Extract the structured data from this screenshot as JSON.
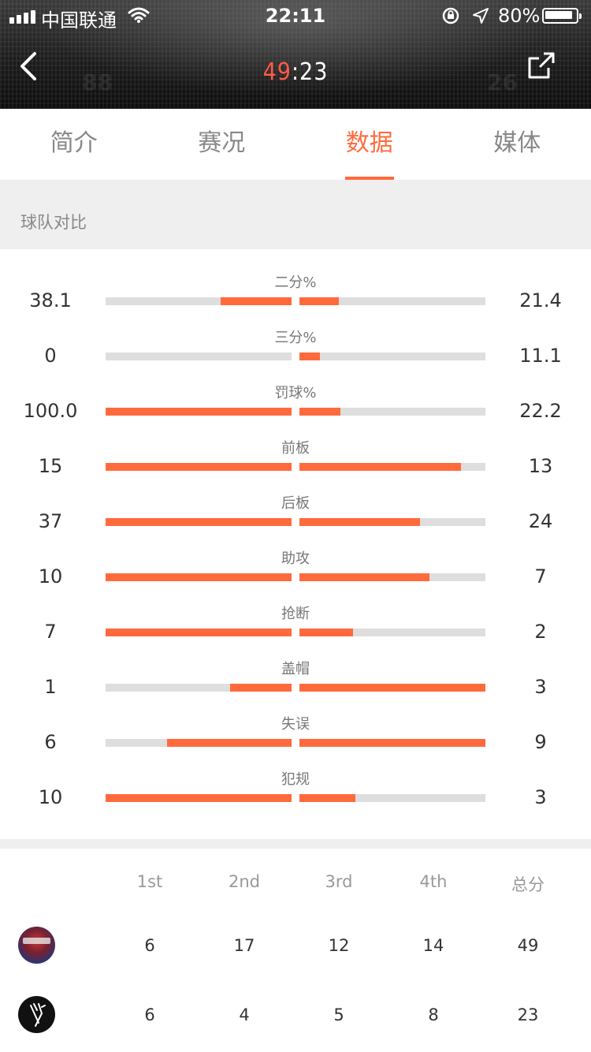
{
  "status_bar": {
    "carrier": "中国联通",
    "time": "22:11",
    "battery": "80%"
  },
  "header": {
    "home_score": "49",
    "separator": ":",
    "away_score": "23",
    "home_color": "#ff5a4a"
  },
  "tabs": [
    {
      "label": "简介",
      "active": false
    },
    {
      "label": "赛况",
      "active": false
    },
    {
      "label": "数据",
      "active": true
    },
    {
      "label": "媒体",
      "active": false
    }
  ],
  "accent_color": "#ff6a3d",
  "section": {
    "title": "球队对比"
  },
  "compare": [
    {
      "label": "二分%",
      "left": "38.1",
      "right": "21.4",
      "left_fill": 0.38,
      "right_fill": 0.21
    },
    {
      "label": "三分%",
      "left": "0",
      "right": "11.1",
      "left_fill": 0.0,
      "right_fill": 0.11
    },
    {
      "label": "罚球%",
      "left": "100.0",
      "right": "22.2",
      "left_fill": 1.0,
      "right_fill": 0.22
    },
    {
      "label": "前板",
      "left": "15",
      "right": "13",
      "left_fill": 1.0,
      "right_fill": 0.87
    },
    {
      "label": "后板",
      "left": "37",
      "right": "24",
      "left_fill": 1.0,
      "right_fill": 0.65
    },
    {
      "label": "助攻",
      "left": "10",
      "right": "7",
      "left_fill": 1.0,
      "right_fill": 0.7
    },
    {
      "label": "抢断",
      "left": "7",
      "right": "2",
      "left_fill": 1.0,
      "right_fill": 0.29
    },
    {
      "label": "盖帽",
      "left": "1",
      "right": "3",
      "left_fill": 0.33,
      "right_fill": 1.0
    },
    {
      "label": "失误",
      "left": "6",
      "right": "9",
      "left_fill": 0.67,
      "right_fill": 1.0
    },
    {
      "label": "犯规",
      "left": "10",
      "right": "3",
      "left_fill": 1.0,
      "right_fill": 0.3
    }
  ],
  "quarters": {
    "headers": [
      "1st",
      "2nd",
      "3rd",
      "4th",
      "总分"
    ],
    "teams": [
      {
        "scores": [
          "6",
          "17",
          "12",
          "14",
          "49"
        ]
      },
      {
        "scores": [
          "6",
          "4",
          "5",
          "8",
          "23"
        ]
      }
    ]
  }
}
